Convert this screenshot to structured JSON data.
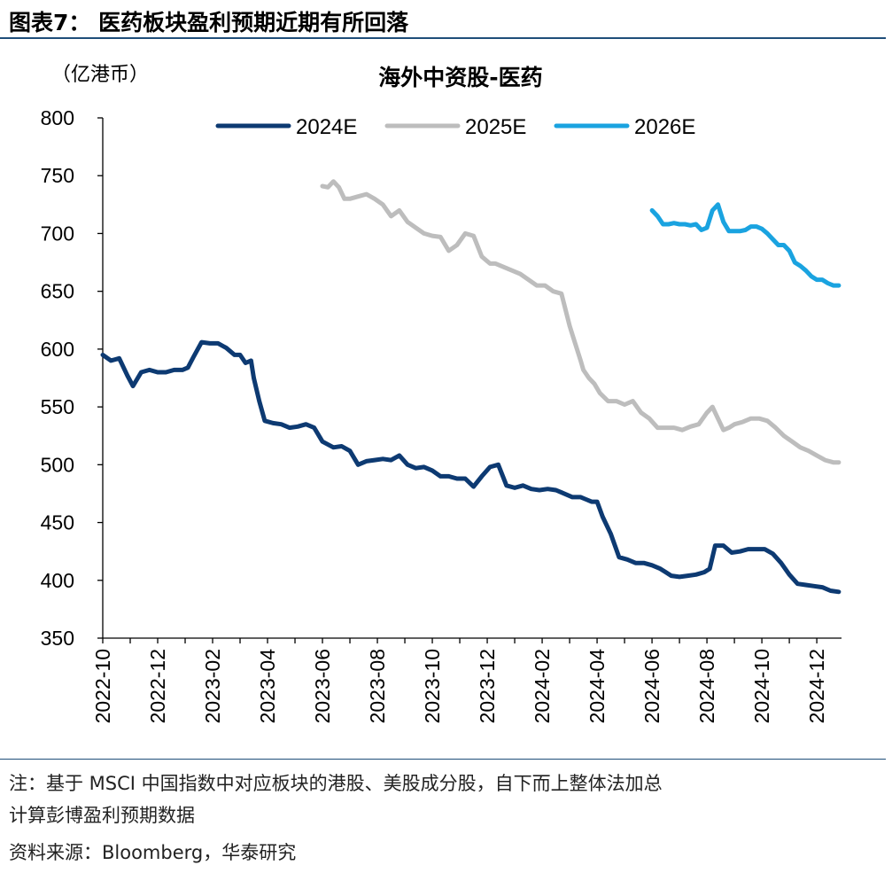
{
  "figure": {
    "title": "图表7：  医药板块盈利预期近期有所回落",
    "unit": "（亿港币）",
    "note_line1": "注：基于 MSCI 中国指数中对应板块的港股、美股成分股，自下而上整体法加总",
    "note_line2": "计算彭博盈利预期数据",
    "source": "资料来源：Bloomberg，华泰研究"
  },
  "chart_data": {
    "type": "line",
    "title": "海外中资股-医药",
    "xlabel": "",
    "ylabel": "（亿港币）",
    "ylim": [
      350,
      800
    ],
    "yticks": [
      350,
      400,
      450,
      500,
      550,
      600,
      650,
      700,
      750,
      800
    ],
    "xlim": [
      0,
      26.9
    ],
    "xtick_labels": [
      "2022-10",
      "2022-12",
      "2023-02",
      "2023-04",
      "2023-06",
      "2023-08",
      "2023-10",
      "2023-12",
      "2024-02",
      "2024-04",
      "2024-06",
      "2024-08",
      "2024-10",
      "2024-12"
    ],
    "xtick_positions": [
      0,
      2,
      4,
      6,
      8,
      10,
      12,
      14,
      16,
      18,
      20,
      22,
      24,
      26
    ],
    "legend_position": "top-center",
    "grid": false,
    "series": [
      {
        "name": "2024E",
        "color": "#0d3a72",
        "x": [
          0,
          0.3,
          0.6,
          0.9,
          1.1,
          1.4,
          1.7,
          2.0,
          2.3,
          2.6,
          2.9,
          3.1,
          3.3,
          3.6,
          3.9,
          4.2,
          4.5,
          4.8,
          5.0,
          5.2,
          5.4,
          5.5,
          5.7,
          5.9,
          6.2,
          6.5,
          6.8,
          7.1,
          7.4,
          7.7,
          8.0,
          8.4,
          8.7,
          9.0,
          9.3,
          9.6,
          9.9,
          10.2,
          10.5,
          10.8,
          11.1,
          11.4,
          11.7,
          12.0,
          12.3,
          12.6,
          12.9,
          13.2,
          13.5,
          13.8,
          14.1,
          14.4,
          14.7,
          15.0,
          15.3,
          15.6,
          15.9,
          16.2,
          16.5,
          16.8,
          17.1,
          17.4,
          17.6,
          17.8,
          18.0,
          18.2,
          18.5,
          18.8,
          19.1,
          19.4,
          19.7,
          20.0,
          20.3,
          20.5,
          20.7,
          21.0,
          21.3,
          21.6,
          21.9,
          22.1,
          22.3,
          22.6,
          22.9,
          23.2,
          23.5,
          23.8,
          24.1,
          24.4,
          24.7,
          25.0,
          25.3,
          25.6,
          25.9,
          26.2,
          26.5,
          26.8
        ],
        "values": [
          595,
          590,
          592,
          577,
          568,
          580,
          582,
          580,
          580,
          582,
          582,
          584,
          593,
          606,
          605,
          605,
          601,
          595,
          595,
          588,
          590,
          575,
          555,
          538,
          536,
          535,
          532,
          533,
          535,
          532,
          520,
          515,
          516,
          512,
          500,
          503,
          504,
          505,
          504,
          508,
          500,
          497,
          498,
          495,
          490,
          490,
          488,
          488,
          481,
          490,
          498,
          500,
          482,
          480,
          482,
          479,
          478,
          479,
          478,
          475,
          472,
          472,
          470,
          468,
          468,
          455,
          440,
          420,
          418,
          415,
          415,
          413,
          410,
          407,
          404,
          403,
          404,
          405,
          407,
          410,
          430,
          430,
          424,
          425,
          427,
          427,
          427,
          423,
          415,
          405,
          397,
          396,
          395,
          394,
          391,
          390
        ]
      },
      {
        "name": "2025E",
        "color": "#bdbdbd",
        "x": [
          8.0,
          8.2,
          8.4,
          8.6,
          8.8,
          9.0,
          9.3,
          9.6,
          9.9,
          10.2,
          10.5,
          10.8,
          11.1,
          11.4,
          11.7,
          12.0,
          12.3,
          12.6,
          12.9,
          13.2,
          13.5,
          13.8,
          14.1,
          14.3,
          14.6,
          14.9,
          15.2,
          15.5,
          15.8,
          16.1,
          16.4,
          16.7,
          17.0,
          17.2,
          17.4,
          17.5,
          17.7,
          17.9,
          18.1,
          18.4,
          18.7,
          19.0,
          19.3,
          19.6,
          19.9,
          20.2,
          20.5,
          20.8,
          21.1,
          21.4,
          21.7,
          22.0,
          22.2,
          22.4,
          22.6,
          22.8,
          23.0,
          23.3,
          23.6,
          23.9,
          24.2,
          24.5,
          24.8,
          25.1,
          25.4,
          25.7,
          26.0,
          26.3,
          26.6,
          26.8
        ],
        "values": [
          741,
          740,
          745,
          740,
          730,
          730,
          732,
          734,
          730,
          725,
          715,
          720,
          710,
          705,
          700,
          698,
          697,
          685,
          690,
          700,
          698,
          680,
          674,
          674,
          671,
          668,
          665,
          660,
          655,
          655,
          650,
          648,
          620,
          605,
          590,
          582,
          575,
          570,
          562,
          555,
          555,
          552,
          555,
          545,
          540,
          532,
          532,
          532,
          530,
          533,
          535,
          545,
          550,
          540,
          530,
          532,
          535,
          537,
          540,
          540,
          538,
          532,
          525,
          520,
          515,
          512,
          508,
          504,
          502,
          502
        ]
      },
      {
        "name": "2026E",
        "color": "#1aa3e0",
        "x": [
          20.0,
          20.2,
          20.4,
          20.6,
          20.8,
          21.0,
          21.2,
          21.4,
          21.6,
          21.8,
          22.0,
          22.2,
          22.4,
          22.6,
          22.8,
          23.0,
          23.2,
          23.4,
          23.6,
          23.8,
          24.0,
          24.2,
          24.4,
          24.6,
          24.8,
          25.0,
          25.2,
          25.4,
          25.6,
          25.8,
          26.0,
          26.2,
          26.4,
          26.6,
          26.8
        ],
        "values": [
          720,
          715,
          708,
          708,
          709,
          708,
          708,
          707,
          708,
          703,
          705,
          720,
          725,
          710,
          702,
          702,
          702,
          703,
          706,
          706,
          704,
          700,
          695,
          690,
          690,
          685,
          675,
          672,
          668,
          663,
          660,
          660,
          657,
          655,
          655
        ]
      }
    ]
  }
}
